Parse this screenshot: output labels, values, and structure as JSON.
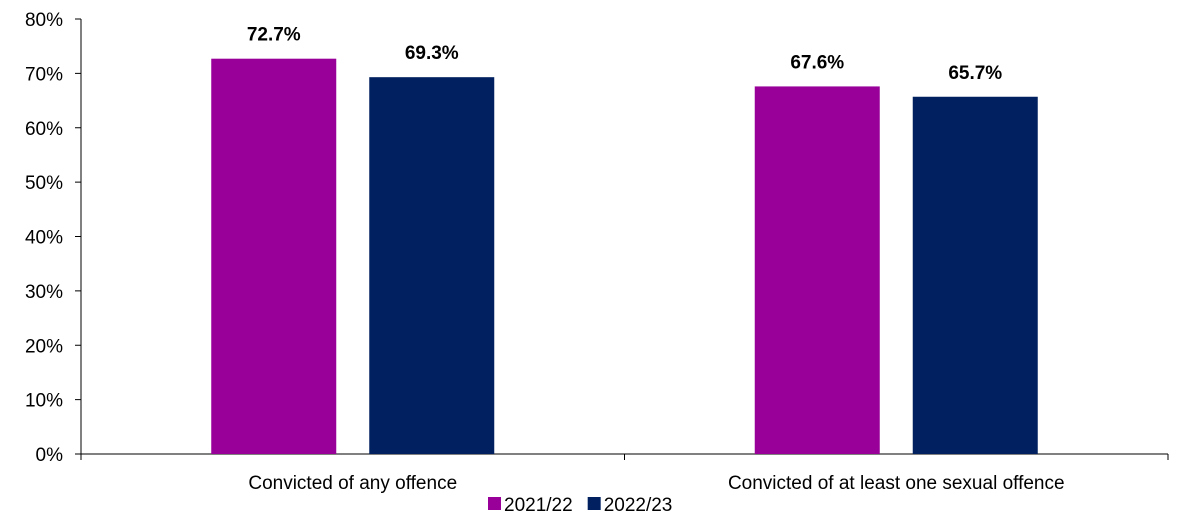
{
  "chart_data": {
    "type": "bar",
    "categories": [
      "Convicted of any offence",
      "Convicted of at least one sexual offence"
    ],
    "series": [
      {
        "name": "2021/22",
        "values": [
          72.7,
          67.6
        ],
        "labels": [
          "72.7%",
          "67.6%"
        ],
        "color": "#990099"
      },
      {
        "name": "2022/23",
        "values": [
          69.3,
          65.7
        ],
        "labels": [
          "69.3%",
          "65.7%"
        ],
        "color": "#002060"
      }
    ],
    "ylim": [
      0,
      80
    ],
    "yticks": [
      0,
      10,
      20,
      30,
      40,
      50,
      60,
      70,
      80
    ],
    "ytick_labels": [
      "0%",
      "10%",
      "20%",
      "30%",
      "40%",
      "50%",
      "60%",
      "70%",
      "80%"
    ],
    "grid": false,
    "legend_position": "bottom"
  }
}
